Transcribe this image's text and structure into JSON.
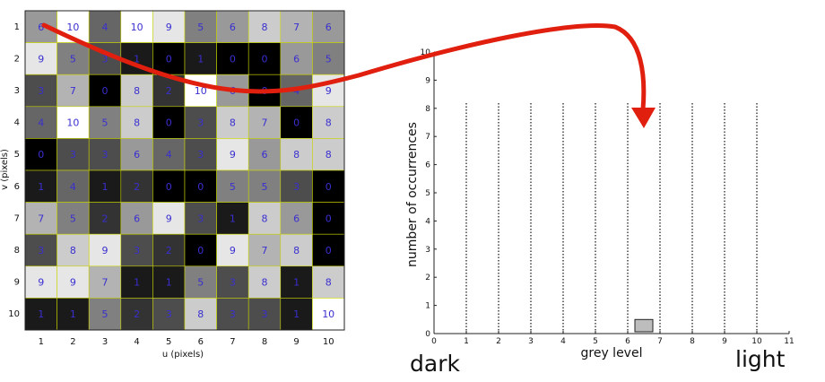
{
  "pixel_grid": {
    "xlabel": "u (pixels)",
    "ylabel": "v (pixels)",
    "u_ticks": [
      "1",
      "2",
      "3",
      "4",
      "5",
      "6",
      "7",
      "8",
      "9",
      "10"
    ],
    "v_ticks": [
      "1",
      "2",
      "3",
      "4",
      "5",
      "6",
      "7",
      "8",
      "9",
      "10"
    ],
    "values": [
      [
        6,
        10,
        4,
        10,
        9,
        5,
        6,
        8,
        7,
        6
      ],
      [
        9,
        5,
        3,
        1,
        0,
        1,
        0,
        0,
        6,
        5
      ],
      [
        3,
        7,
        0,
        8,
        2,
        10,
        6,
        0,
        4,
        9
      ],
      [
        4,
        10,
        5,
        8,
        0,
        3,
        8,
        7,
        0,
        8
      ],
      [
        0,
        3,
        3,
        6,
        4,
        3,
        9,
        6,
        8,
        8
      ],
      [
        1,
        4,
        1,
        2,
        0,
        0,
        5,
        5,
        3,
        0
      ],
      [
        7,
        5,
        2,
        6,
        9,
        3,
        1,
        8,
        6,
        0
      ],
      [
        3,
        8,
        9,
        3,
        2,
        0,
        9,
        7,
        8,
        0
      ],
      [
        9,
        9,
        7,
        1,
        1,
        5,
        3,
        8,
        1,
        8
      ],
      [
        1,
        1,
        5,
        2,
        3,
        8,
        3,
        3,
        1,
        10
      ]
    ]
  },
  "chart_data": {
    "type": "bar",
    "xlabel": "grey level",
    "ylabel": "number of occurrences",
    "x_ticks": [
      "0",
      "1",
      "2",
      "3",
      "4",
      "5",
      "6",
      "7",
      "8",
      "9",
      "10",
      "11"
    ],
    "y_ticks": [
      "0",
      "1",
      "2",
      "3",
      "4",
      "5",
      "6",
      "7",
      "8",
      "9",
      "10"
    ],
    "xlim": [
      0,
      11
    ],
    "ylim": [
      0,
      10
    ],
    "bars": [
      {
        "grey_level": 6.5,
        "count": 0.5
      }
    ],
    "dotted_line_levels": [
      1,
      2,
      3,
      4,
      5,
      6,
      7,
      8,
      9,
      10
    ]
  },
  "labels": {
    "dark": "dark",
    "light": "light"
  },
  "colors": {
    "number_text": "#3a2fd0",
    "arrow": "#e11f0f",
    "bar_fill": "#bdbdbd",
    "grid_line": "#c9d400"
  }
}
